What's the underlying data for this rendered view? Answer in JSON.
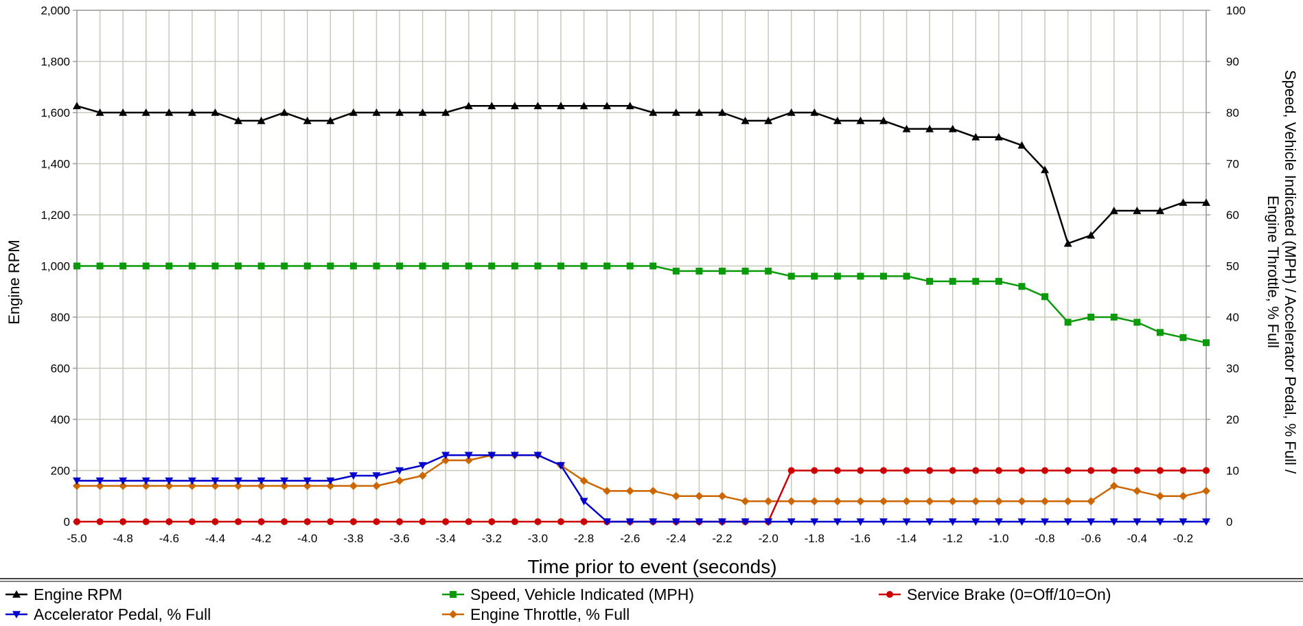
{
  "chart_data": {
    "type": "line",
    "xlabel": "Time prior to event (seconds)",
    "ylabel_left": "Engine RPM",
    "ylabel_right_lines": [
      "Speed, Vehicle Indicated (MPH) / Accelerator Pedal, % Full /",
      "Engine Throttle, % Full"
    ],
    "x_ticks": [
      "-5.0",
      "-4.8",
      "-4.6",
      "-4.4",
      "-4.2",
      "-4.0",
      "-3.8",
      "-3.6",
      "-3.4",
      "-3.2",
      "-3.0",
      "-2.8",
      "-2.6",
      "-2.4",
      "-2.2",
      "-2.0",
      "-1.8",
      "-1.6",
      "-1.4",
      "-1.2",
      "-1.0",
      "-0.8",
      "-0.6",
      "-0.4",
      "-0.2"
    ],
    "y_left_ticks": [
      "0",
      "200",
      "400",
      "600",
      "800",
      "1,000",
      "1,200",
      "1,400",
      "1,600",
      "1,800",
      "2,000"
    ],
    "y_right_ticks": [
      "0",
      "10",
      "20",
      "30",
      "40",
      "50",
      "60",
      "70",
      "80",
      "90",
      "100"
    ],
    "xlim": [
      -5.0,
      -0.1
    ],
    "ylim_left": [
      0,
      2000
    ],
    "ylim_right": [
      0,
      100
    ],
    "grid": true,
    "legend_position": "bottom",
    "x": [
      -5.0,
      -4.9,
      -4.8,
      -4.7,
      -4.6,
      -4.5,
      -4.4,
      -4.3,
      -4.2,
      -4.1,
      -4.0,
      -3.9,
      -3.8,
      -3.7,
      -3.6,
      -3.5,
      -3.4,
      -3.3,
      -3.2,
      -3.1,
      -3.0,
      -2.9,
      -2.8,
      -2.7,
      -2.6,
      -2.5,
      -2.4,
      -2.3,
      -2.2,
      -2.1,
      -2.0,
      -1.9,
      -1.8,
      -1.7,
      -1.6,
      -1.5,
      -1.4,
      -1.3,
      -1.2,
      -1.1,
      -1.0,
      -0.9,
      -0.8,
      -0.7,
      -0.6,
      -0.5,
      -0.4,
      -0.3,
      -0.2,
      -0.1
    ],
    "series": [
      {
        "name": "Engine RPM",
        "axis": "left",
        "color": "#000000",
        "marker": "triangle-up",
        "values": [
          1626,
          1600,
          1600,
          1600,
          1600,
          1600,
          1600,
          1568,
          1568,
          1600,
          1568,
          1568,
          1600,
          1600,
          1600,
          1600,
          1600,
          1626,
          1626,
          1626,
          1626,
          1626,
          1626,
          1626,
          1626,
          1600,
          1600,
          1600,
          1600,
          1568,
          1568,
          1600,
          1600,
          1568,
          1568,
          1568,
          1536,
          1536,
          1536,
          1504,
          1504,
          1472,
          1376,
          1088,
          1120,
          1216,
          1216,
          1216,
          1248,
          1248
        ]
      },
      {
        "name": "Speed, Vehicle Indicated (MPH)",
        "axis": "right",
        "color": "#0a9a0a",
        "marker": "square",
        "values": [
          50,
          50,
          50,
          50,
          50,
          50,
          50,
          50,
          50,
          50,
          50,
          50,
          50,
          50,
          50,
          50,
          50,
          50,
          50,
          50,
          50,
          50,
          50,
          50,
          50,
          50,
          49,
          49,
          49,
          49,
          49,
          48,
          48,
          48,
          48,
          48,
          48,
          47,
          47,
          47,
          47,
          46,
          44,
          39,
          40,
          40,
          39,
          37,
          36,
          35
        ]
      },
      {
        "name": "Service Brake (0=Off/10=On)",
        "axis": "right",
        "color": "#cc0000",
        "marker": "circle",
        "values": [
          0,
          0,
          0,
          0,
          0,
          0,
          0,
          0,
          0,
          0,
          0,
          0,
          0,
          0,
          0,
          0,
          0,
          0,
          0,
          0,
          0,
          0,
          0,
          0,
          0,
          0,
          0,
          0,
          0,
          0,
          0,
          10,
          10,
          10,
          10,
          10,
          10,
          10,
          10,
          10,
          10,
          10,
          10,
          10,
          10,
          10,
          10,
          10,
          10,
          10
        ]
      },
      {
        "name": "Accelerator Pedal, % Full",
        "axis": "right",
        "color": "#0000cc",
        "marker": "triangle-down",
        "values": [
          8,
          8,
          8,
          8,
          8,
          8,
          8,
          8,
          8,
          8,
          8,
          8,
          9,
          9,
          10,
          11,
          13,
          13,
          13,
          13,
          13,
          11,
          4,
          0,
          0,
          0,
          0,
          0,
          0,
          0,
          0,
          0,
          0,
          0,
          0,
          0,
          0,
          0,
          0,
          0,
          0,
          0,
          0,
          0,
          0,
          0,
          0,
          0,
          0,
          0
        ]
      },
      {
        "name": "Engine Throttle, % Full",
        "axis": "right",
        "color": "#cc6600",
        "marker": "diamond",
        "values": [
          7,
          7,
          7,
          7,
          7,
          7,
          7,
          7,
          7,
          7,
          7,
          7,
          7,
          7,
          8,
          9,
          12,
          12,
          13,
          13,
          13,
          11,
          8,
          6,
          6,
          6,
          5,
          5,
          5,
          4,
          4,
          4,
          4,
          4,
          4,
          4,
          4,
          4,
          4,
          4,
          4,
          4,
          4,
          4,
          4,
          7,
          6,
          5,
          5,
          6
        ]
      }
    ],
    "legend_rows": [
      [
        "Engine RPM",
        "Speed, Vehicle Indicated (MPH)",
        "Service Brake (0=Off/10=On)"
      ],
      [
        "Accelerator Pedal, % Full",
        "Engine Throttle, % Full"
      ]
    ]
  }
}
